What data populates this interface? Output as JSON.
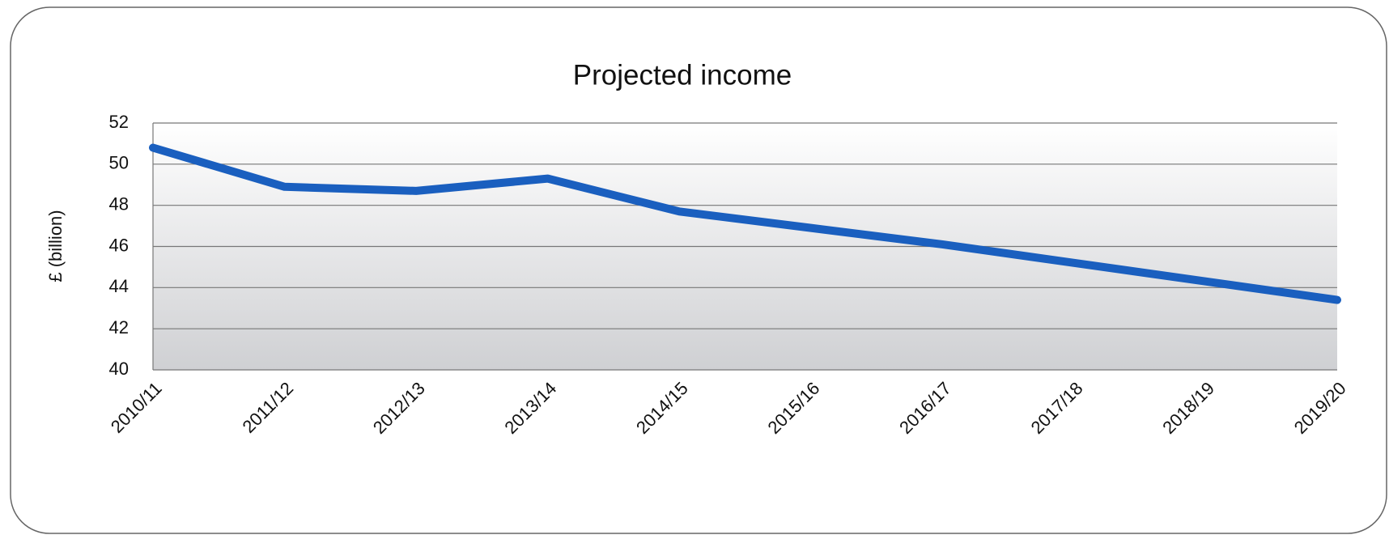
{
  "chart_data": {
    "type": "line",
    "title": "Projected income",
    "y_label": "£ (billion)",
    "categories": [
      "2010/11",
      "2011/12",
      "2012/13",
      "2013/14",
      "2014/15",
      "2015/16",
      "2016/17",
      "2017/18",
      "2018/19",
      "2019/20"
    ],
    "series": [
      {
        "color": "#1a5fbf",
        "values": [
          50.8,
          48.9,
          48.7,
          49.3,
          47.7,
          46.9,
          46.1,
          45.2,
          44.3,
          43.4
        ]
      }
    ],
    "ylim": [
      40,
      52
    ],
    "yticks": [
      40,
      42,
      44,
      46,
      48,
      50,
      52
    ],
    "grid": true
  }
}
